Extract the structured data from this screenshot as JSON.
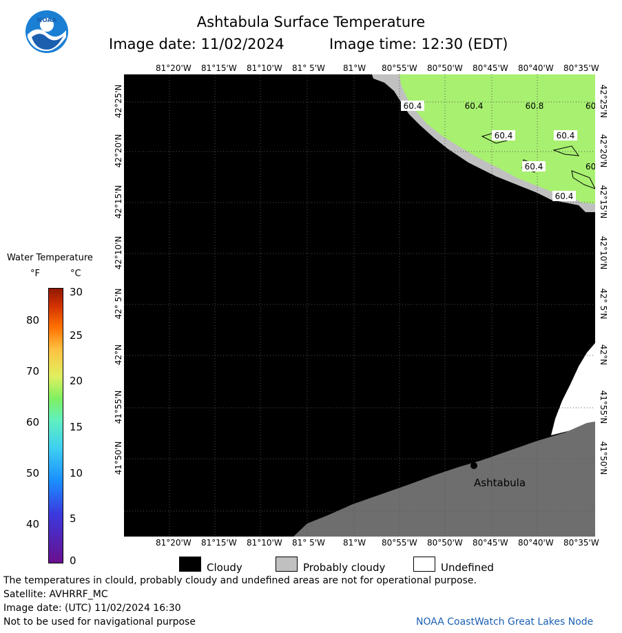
{
  "header": {
    "title": "Ashtabula Surface Temperature",
    "image_date": "Image date: 11/02/2024",
    "image_time": "Image time: 12:30 (EDT)"
  },
  "logo": {
    "text": "NOAA"
  },
  "axes": {
    "longitude_labels": [
      "81°20'W",
      "81°15'W",
      "81°10'W",
      "81° 5'W",
      "81°W",
      "80°55'W",
      "80°50'W",
      "80°45'W",
      "80°40'W",
      "80°35'W"
    ],
    "latitude_labels": [
      "42°25'N",
      "42°20'N",
      "42°15'N",
      "42°10'N",
      "42° 5'N",
      "42°N",
      "41°55'N",
      "41°50'N"
    ]
  },
  "map": {
    "place_label": "Ashtabula",
    "temperature_labels": [
      "60.4",
      "60.4",
      "60.8",
      "60",
      "60.4",
      "60.4",
      "60.4",
      "60",
      "60.4"
    ],
    "colors": {
      "cloud": "#000000",
      "probably_cloudy": "#c0c0c0",
      "land": "#6e6e6e",
      "undefined": "#ffffff",
      "water_60": "#a8f070"
    }
  },
  "colorbar": {
    "title": "Water Temperature",
    "unit_f": "°F",
    "unit_c": "°C",
    "f_ticks": [
      "80",
      "70",
      "60",
      "50",
      "40"
    ],
    "c_ticks": [
      "30",
      "25",
      "20",
      "15",
      "10",
      "5",
      "0"
    ]
  },
  "key": {
    "cloudy": "Cloudy",
    "probably_cloudy": "Probably cloudy",
    "undefined": "Undefined"
  },
  "footer": {
    "line1": "The temperatures in clould, probably cloudy and undefined areas are not for operational purpose.",
    "line2": "Satellite: AVHRRF_MC",
    "line3": "Image date: (UTC) 11/02/2024  16:30",
    "line4": "Not to be used for navigational purpose",
    "credit": "NOAA CoastWatch Great Lakes Node"
  }
}
